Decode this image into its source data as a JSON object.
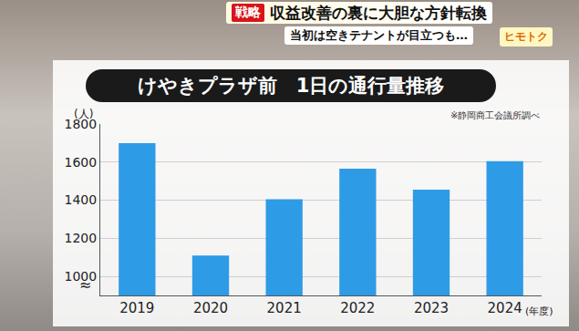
{
  "header": {
    "tag": "戦略",
    "headline": "収益改善の裏に大胆な方針転換",
    "subheadline": "当初は空きテナントが目立つも…",
    "logo": "ヒモトク"
  },
  "chart_data": {
    "type": "bar",
    "title": "けやきプラザ前　1日の通行量推移",
    "source": "※静岡商工会議所調べ",
    "y_label": "(人)",
    "x_label": "(年度)",
    "axis_break": "≈",
    "categories": [
      "2019",
      "2020",
      "2021",
      "2022",
      "2023",
      "2024"
    ],
    "values": [
      1700,
      1110,
      1405,
      1565,
      1455,
      1605
    ],
    "color": "#2e9be6",
    "ylim": [
      900,
      1800
    ],
    "yticks": [
      1000,
      1200,
      1400,
      1600,
      1800
    ],
    "grid": true
  }
}
